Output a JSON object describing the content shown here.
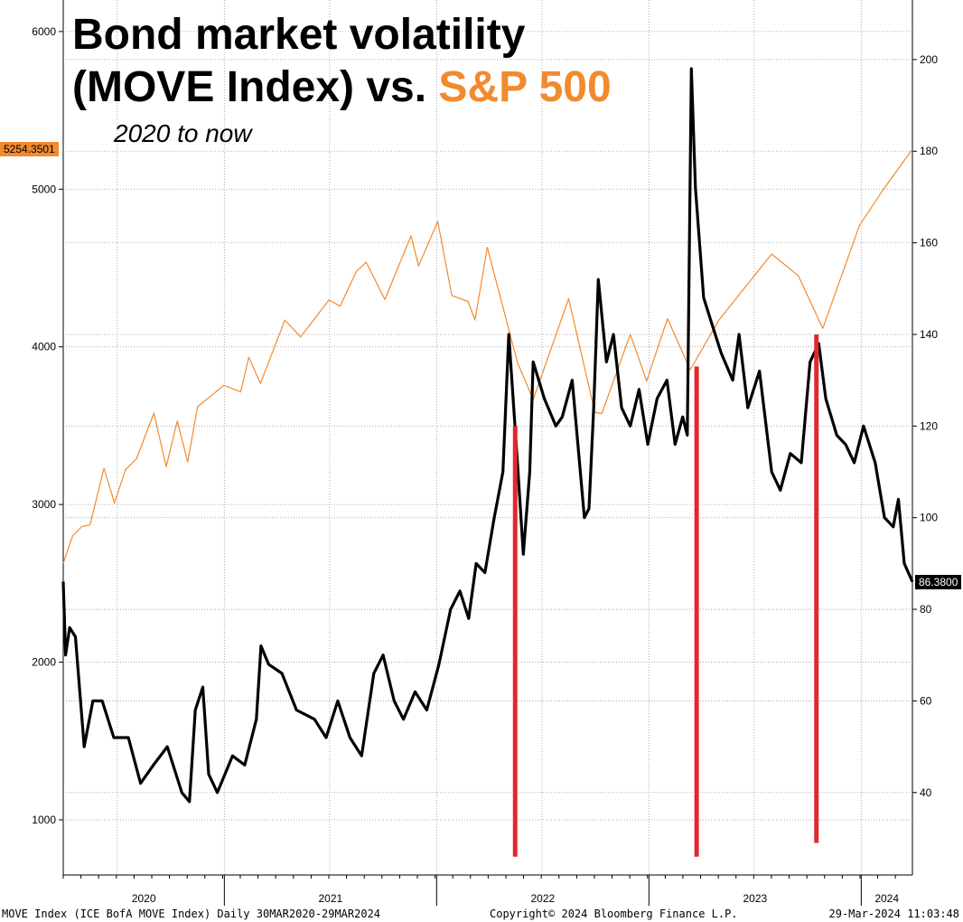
{
  "header": {
    "title_line1": "Bond market volatility",
    "title_line2_prefix": "(MOVE Index) vs. ",
    "title_line2_accent": "S&P 500",
    "subtitle": "2020 to now"
  },
  "footer": {
    "source": "MOVE Index (ICE BofA MOVE Index)  Daily 30MAR2020-29MAR2024",
    "copyright": "Copyright© 2024 Bloomberg Finance L.P.",
    "timestamp": "29-Mar-2024 11:03:48"
  },
  "colors": {
    "sp500": "#f28a2e",
    "move": "#000000",
    "markers": "#e0282e",
    "grid": "#9a9a9a"
  },
  "chart_data": {
    "type": "line",
    "x_axis": {
      "labels": [
        "2020",
        "2021",
        "2022",
        "2023",
        "2024"
      ],
      "range": [
        "2020-03-30",
        "2024-03-29"
      ]
    },
    "left_axis": {
      "series": "S&P 500",
      "ticks": [
        1000,
        2000,
        3000,
        4000,
        5000,
        6000
      ],
      "range": [
        650,
        6200
      ]
    },
    "right_axis": {
      "series": "MOVE Index",
      "ticks": [
        40,
        60,
        80,
        100,
        120,
        140,
        160,
        180,
        200
      ],
      "range": [
        22,
        213
      ]
    },
    "last_values": {
      "sp500": "5254.3501",
      "move": "86.3800"
    },
    "grid": true,
    "series": [
      {
        "name": "S&P 500",
        "axis": "left",
        "points": [
          [
            "2020-03-30",
            2627
          ],
          [
            "2020-04-15",
            2800
          ],
          [
            "2020-05-01",
            2860
          ],
          [
            "2020-05-15",
            2870
          ],
          [
            "2020-06-08",
            3230
          ],
          [
            "2020-06-26",
            3010
          ],
          [
            "2020-07-15",
            3220
          ],
          [
            "2020-08-03",
            3290
          ],
          [
            "2020-09-02",
            3580
          ],
          [
            "2020-09-23",
            3240
          ],
          [
            "2020-10-12",
            3530
          ],
          [
            "2020-10-30",
            3270
          ],
          [
            "2020-11-16",
            3620
          ],
          [
            "2020-12-31",
            3756
          ],
          [
            "2021-01-29",
            3714
          ],
          [
            "2021-02-12",
            3934
          ],
          [
            "2021-03-04",
            3768
          ],
          [
            "2021-04-15",
            4170
          ],
          [
            "2021-05-12",
            4063
          ],
          [
            "2021-06-30",
            4297
          ],
          [
            "2021-07-19",
            4258
          ],
          [
            "2021-08-16",
            4479
          ],
          [
            "2021-09-02",
            4537
          ],
          [
            "2021-10-04",
            4300
          ],
          [
            "2021-11-18",
            4704
          ],
          [
            "2021-12-01",
            4513
          ],
          [
            "2022-01-03",
            4796
          ],
          [
            "2022-01-27",
            4326
          ],
          [
            "2022-02-24",
            4288
          ],
          [
            "2022-03-08",
            4170
          ],
          [
            "2022-03-29",
            4631
          ],
          [
            "2022-05-20",
            3901
          ],
          [
            "2022-06-16",
            3666
          ],
          [
            "2022-08-16",
            4305
          ],
          [
            "2022-09-30",
            3585
          ],
          [
            "2022-10-12",
            3577
          ],
          [
            "2022-11-30",
            4080
          ],
          [
            "2022-12-28",
            3783
          ],
          [
            "2023-02-02",
            4179
          ],
          [
            "2023-03-13",
            3855
          ],
          [
            "2023-05-01",
            4168
          ],
          [
            "2023-07-31",
            4589
          ],
          [
            "2023-09-15",
            4450
          ],
          [
            "2023-10-27",
            4117
          ],
          [
            "2023-12-29",
            4770
          ],
          [
            "2024-02-08",
            4998
          ],
          [
            "2024-03-29",
            5254
          ]
        ]
      },
      {
        "name": "MOVE Index",
        "axis": "right",
        "points": [
          [
            "2020-03-30",
            86
          ],
          [
            "2020-04-03",
            70
          ],
          [
            "2020-04-10",
            76
          ],
          [
            "2020-04-20",
            74
          ],
          [
            "2020-05-05",
            50
          ],
          [
            "2020-05-20",
            60
          ],
          [
            "2020-06-05",
            60
          ],
          [
            "2020-06-25",
            52
          ],
          [
            "2020-07-20",
            52
          ],
          [
            "2020-08-10",
            42
          ],
          [
            "2020-09-01",
            46
          ],
          [
            "2020-09-25",
            50
          ],
          [
            "2020-10-20",
            40
          ],
          [
            "2020-11-02",
            38
          ],
          [
            "2020-11-12",
            58
          ],
          [
            "2020-11-25",
            63
          ],
          [
            "2020-12-05",
            44
          ],
          [
            "2020-12-20",
            40
          ],
          [
            "2021-01-15",
            48
          ],
          [
            "2021-02-05",
            46
          ],
          [
            "2021-02-25",
            56
          ],
          [
            "2021-03-05",
            72
          ],
          [
            "2021-03-18",
            68
          ],
          [
            "2021-04-10",
            66
          ],
          [
            "2021-05-05",
            58
          ],
          [
            "2021-06-05",
            56
          ],
          [
            "2021-06-25",
            52
          ],
          [
            "2021-07-15",
            60
          ],
          [
            "2021-08-05",
            52
          ],
          [
            "2021-08-25",
            48
          ],
          [
            "2021-09-15",
            66
          ],
          [
            "2021-10-01",
            70
          ],
          [
            "2021-10-20",
            60
          ],
          [
            "2021-11-05",
            56
          ],
          [
            "2021-11-25",
            62
          ],
          [
            "2021-12-15",
            58
          ],
          [
            "2022-01-05",
            68
          ],
          [
            "2022-01-25",
            80
          ],
          [
            "2022-02-10",
            84
          ],
          [
            "2022-02-25",
            78
          ],
          [
            "2022-03-10",
            90
          ],
          [
            "2022-03-25",
            88
          ],
          [
            "2022-04-10",
            100
          ],
          [
            "2022-04-25",
            110
          ],
          [
            "2022-05-05",
            140
          ],
          [
            "2022-05-20",
            112
          ],
          [
            "2022-05-30",
            92
          ],
          [
            "2022-06-10",
            110
          ],
          [
            "2022-06-16",
            134
          ],
          [
            "2022-07-05",
            126
          ],
          [
            "2022-07-25",
            120
          ],
          [
            "2022-08-05",
            122
          ],
          [
            "2022-08-22",
            130
          ],
          [
            "2022-09-12",
            100
          ],
          [
            "2022-09-20",
            102
          ],
          [
            "2022-09-28",
            124
          ],
          [
            "2022-10-06",
            152
          ],
          [
            "2022-10-20",
            134
          ],
          [
            "2022-11-01",
            140
          ],
          [
            "2022-11-15",
            124
          ],
          [
            "2022-11-30",
            120
          ],
          [
            "2022-12-15",
            128
          ],
          [
            "2022-12-30",
            116
          ],
          [
            "2023-01-15",
            126
          ],
          [
            "2023-02-01",
            130
          ],
          [
            "2023-02-15",
            116
          ],
          [
            "2023-02-28",
            122
          ],
          [
            "2023-03-08",
            118
          ],
          [
            "2023-03-15",
            198
          ],
          [
            "2023-03-22",
            172
          ],
          [
            "2023-04-05",
            148
          ],
          [
            "2023-04-20",
            142
          ],
          [
            "2023-05-05",
            136
          ],
          [
            "2023-05-25",
            130
          ],
          [
            "2023-06-05",
            140
          ],
          [
            "2023-06-20",
            124
          ],
          [
            "2023-07-10",
            132
          ],
          [
            "2023-07-31",
            110
          ],
          [
            "2023-08-15",
            106
          ],
          [
            "2023-09-01",
            114
          ],
          [
            "2023-09-20",
            112
          ],
          [
            "2023-10-05",
            134
          ],
          [
            "2023-10-20",
            138
          ],
          [
            "2023-11-01",
            126
          ],
          [
            "2023-11-20",
            118
          ],
          [
            "2023-12-05",
            116
          ],
          [
            "2023-12-20",
            112
          ],
          [
            "2024-01-05",
            120
          ],
          [
            "2024-01-25",
            112
          ],
          [
            "2024-02-10",
            100
          ],
          [
            "2024-02-25",
            98
          ],
          [
            "2024-03-05",
            104
          ],
          [
            "2024-03-15",
            90
          ],
          [
            "2024-03-29",
            86
          ]
        ]
      }
    ],
    "annotations": [
      {
        "type": "vertical-bar",
        "date": "2022-05-16",
        "top_value": 120,
        "bottom_value": 26,
        "axis": "right",
        "color": "#e0282e"
      },
      {
        "type": "vertical-bar",
        "date": "2023-03-24",
        "top_value": 133,
        "bottom_value": 26,
        "axis": "right",
        "color": "#e0282e"
      },
      {
        "type": "vertical-bar",
        "date": "2023-10-16",
        "top_value": 140,
        "bottom_value": 29,
        "axis": "right",
        "color": "#e0282e"
      }
    ]
  }
}
